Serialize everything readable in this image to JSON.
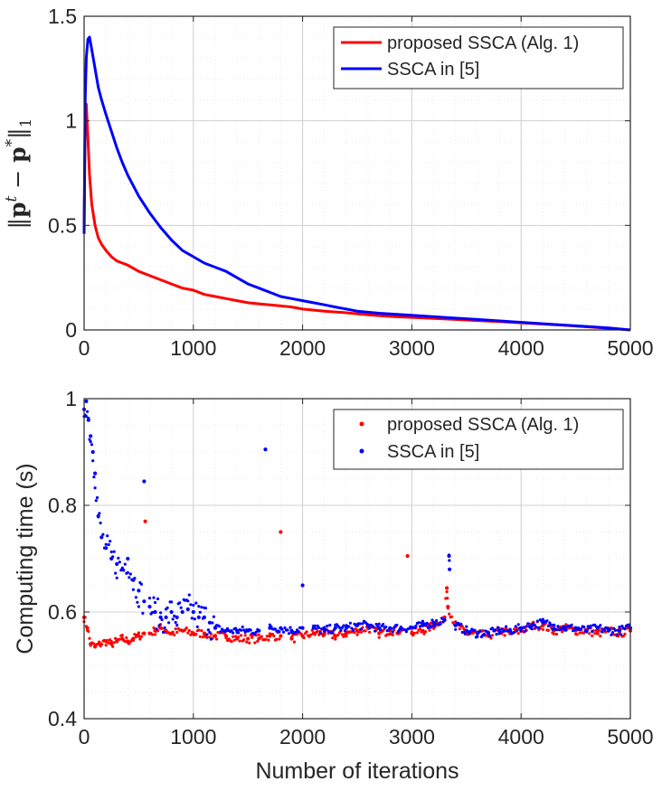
{
  "chart_data": [
    {
      "type": "line",
      "title": "",
      "xlabel": "",
      "ylabel": "||p^t - p^*||_1",
      "xlim": [
        0,
        5000
      ],
      "ylim": [
        0,
        1.5
      ],
      "grid": true,
      "minor_grid": true,
      "legend_position": "top-right",
      "x_ticks": [
        {
          "value": 0,
          "label": "0"
        },
        {
          "value": 1000,
          "label": "1000"
        },
        {
          "value": 2000,
          "label": "2000"
        },
        {
          "value": 3000,
          "label": "3000"
        },
        {
          "value": 4000,
          "label": "4000"
        },
        {
          "value": 5000,
          "label": "5000"
        }
      ],
      "y_ticks": [
        {
          "value": 0,
          "label": "0"
        },
        {
          "value": 0.5,
          "label": "0.5"
        },
        {
          "value": 1,
          "label": "1"
        },
        {
          "value": 1.5,
          "label": "1.5"
        }
      ],
      "series": [
        {
          "name": "proposed SSCA (Alg. 1)",
          "color": "#ff0000",
          "x": [
            0,
            10,
            20,
            35,
            50,
            70,
            100,
            130,
            160,
            200,
            250,
            300,
            350,
            400,
            500,
            600,
            700,
            800,
            900,
            1000,
            1100,
            1200,
            1300,
            1400,
            1500,
            1600,
            1700,
            1800,
            1900,
            2000,
            2200,
            2400,
            2600,
            2800,
            3000,
            3200,
            3400,
            3600,
            3800,
            4000,
            4200,
            4400,
            4600,
            4800,
            5000
          ],
          "values": [
            0.46,
            1.02,
            1.08,
            0.92,
            0.74,
            0.6,
            0.5,
            0.44,
            0.41,
            0.38,
            0.35,
            0.33,
            0.32,
            0.31,
            0.28,
            0.26,
            0.24,
            0.22,
            0.2,
            0.19,
            0.17,
            0.16,
            0.15,
            0.14,
            0.13,
            0.125,
            0.12,
            0.115,
            0.11,
            0.1,
            0.09,
            0.082,
            0.072,
            0.065,
            0.06,
            0.055,
            0.05,
            0.045,
            0.04,
            0.034,
            0.028,
            0.022,
            0.015,
            0.008,
            0.0
          ]
        },
        {
          "name": "SSCA in [5]",
          "color": "#0000ff",
          "x": [
            0,
            10,
            20,
            35,
            50,
            70,
            100,
            130,
            160,
            200,
            250,
            300,
            350,
            400,
            450,
            500,
            600,
            700,
            800,
            900,
            1000,
            1100,
            1200,
            1300,
            1400,
            1500,
            1600,
            1700,
            1800,
            1900,
            2000,
            2100,
            2200,
            2300,
            2400,
            2500,
            2700,
            3000,
            3300,
            3600,
            3900,
            4200,
            4500,
            4800,
            5000
          ],
          "values": [
            0.46,
            1.1,
            1.3,
            1.39,
            1.4,
            1.34,
            1.25,
            1.16,
            1.1,
            1.03,
            0.95,
            0.87,
            0.8,
            0.74,
            0.69,
            0.64,
            0.56,
            0.49,
            0.43,
            0.38,
            0.35,
            0.32,
            0.3,
            0.28,
            0.25,
            0.22,
            0.2,
            0.18,
            0.16,
            0.15,
            0.14,
            0.13,
            0.12,
            0.11,
            0.1,
            0.09,
            0.08,
            0.07,
            0.06,
            0.05,
            0.04,
            0.03,
            0.02,
            0.01,
            0.0
          ]
        }
      ]
    },
    {
      "type": "scatter",
      "title": "",
      "xlabel": "Number of iterations",
      "ylabel": "Computing time (s)",
      "xlim": [
        0,
        5000
      ],
      "ylim": [
        0.4,
        1.0
      ],
      "grid": true,
      "minor_grid": true,
      "legend_position": "top-right",
      "x_ticks": [
        {
          "value": 0,
          "label": "0"
        },
        {
          "value": 1000,
          "label": "1000"
        },
        {
          "value": 2000,
          "label": "2000"
        },
        {
          "value": 3000,
          "label": "3000"
        },
        {
          "value": 4000,
          "label": "4000"
        },
        {
          "value": 5000,
          "label": "5000"
        }
      ],
      "y_ticks": [
        {
          "value": 0.4,
          "label": "0.4"
        },
        {
          "value": 0.6,
          "label": "0.6"
        },
        {
          "value": 0.8,
          "label": "0.8"
        },
        {
          "value": 1.0,
          "label": "1"
        }
      ],
      "series": [
        {
          "name": "proposed SSCA (Alg. 1)",
          "color": "#ff0000",
          "x": [
            0,
            30,
            60,
            100,
            150,
            200,
            250,
            300,
            350,
            400,
            450,
            500,
            550,
            600,
            650,
            700,
            750,
            800,
            900,
            1000,
            1100,
            1200,
            1300,
            1400,
            1500,
            1600,
            1700,
            1800,
            1900,
            2000,
            2100,
            2200,
            2300,
            2400,
            2500,
            2600,
            2700,
            2800,
            2900,
            3000,
            3100,
            3200,
            3300,
            3400,
            3500,
            3600,
            3700,
            3800,
            3900,
            4000,
            4100,
            4200,
            4300,
            4400,
            4500,
            4600,
            4700,
            4800,
            4900,
            5000,
            560,
            1800,
            2960,
            3320,
            3330
          ],
          "values": [
            0.59,
            0.57,
            0.54,
            0.535,
            0.54,
            0.545,
            0.54,
            0.545,
            0.55,
            0.545,
            0.55,
            0.555,
            0.56,
            0.56,
            0.565,
            0.57,
            0.565,
            0.56,
            0.565,
            0.56,
            0.56,
            0.555,
            0.555,
            0.55,
            0.55,
            0.55,
            0.555,
            0.555,
            0.55,
            0.555,
            0.56,
            0.56,
            0.555,
            0.56,
            0.565,
            0.57,
            0.56,
            0.565,
            0.565,
            0.56,
            0.565,
            0.575,
            0.59,
            0.575,
            0.56,
            0.56,
            0.555,
            0.565,
            0.56,
            0.565,
            0.575,
            0.575,
            0.565,
            0.57,
            0.565,
            0.565,
            0.56,
            0.565,
            0.56,
            0.565,
            0.77,
            0.75,
            0.705,
            0.645,
            0.61
          ]
        },
        {
          "name": "SSCA in [5]",
          "color": "#0000ff",
          "x": [
            0,
            20,
            40,
            60,
            80,
            100,
            130,
            160,
            200,
            250,
            300,
            350,
            400,
            450,
            500,
            550,
            600,
            650,
            700,
            750,
            800,
            850,
            900,
            950,
            1000,
            1050,
            1100,
            1150,
            1200,
            1300,
            1400,
            1500,
            1600,
            1700,
            1800,
            1900,
            2000,
            2100,
            2200,
            2300,
            2400,
            2500,
            2600,
            2700,
            2800,
            2900,
            3000,
            3100,
            3200,
            3300,
            3400,
            3500,
            3600,
            3700,
            3800,
            3900,
            4000,
            4100,
            4200,
            4300,
            4400,
            4500,
            4600,
            4700,
            4800,
            4900,
            5000,
            550,
            1660,
            2000,
            3340,
            3345
          ],
          "values": [
            0.98,
            0.995,
            0.96,
            0.93,
            0.9,
            0.86,
            0.78,
            0.74,
            0.72,
            0.7,
            0.69,
            0.68,
            0.7,
            0.66,
            0.64,
            0.62,
            0.61,
            0.6,
            0.59,
            0.59,
            0.6,
            0.59,
            0.6,
            0.605,
            0.6,
            0.59,
            0.59,
            0.58,
            0.57,
            0.565,
            0.565,
            0.565,
            0.565,
            0.57,
            0.57,
            0.565,
            0.57,
            0.57,
            0.565,
            0.57,
            0.57,
            0.575,
            0.575,
            0.57,
            0.57,
            0.57,
            0.57,
            0.575,
            0.58,
            0.585,
            0.575,
            0.565,
            0.56,
            0.56,
            0.565,
            0.565,
            0.57,
            0.575,
            0.58,
            0.575,
            0.57,
            0.57,
            0.565,
            0.57,
            0.565,
            0.565,
            0.57,
            0.845,
            0.905,
            0.65,
            0.705,
            0.68
          ]
        }
      ]
    }
  ]
}
